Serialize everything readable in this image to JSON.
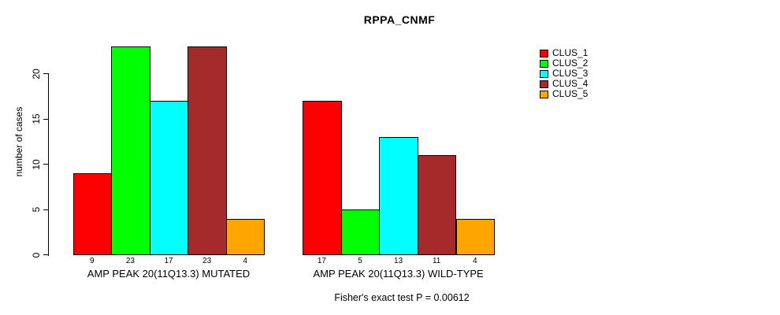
{
  "chart_data": {
    "type": "bar",
    "title": "RPPA_CNMF",
    "ylabel": "number of cases",
    "xlabel": "",
    "ylim": [
      0,
      20
    ],
    "yticks": [
      0,
      5,
      10,
      15,
      20
    ],
    "grid": false,
    "legend_position": "right",
    "bar_value_labels_shown": true,
    "categories": [
      "AMP PEAK 20(11Q13.3) MUTATED",
      "AMP PEAK 20(11Q13.3) WILD-TYPE"
    ],
    "series": [
      {
        "name": "CLUS_1",
        "color": "#FF0000",
        "values": [
          9,
          17
        ]
      },
      {
        "name": "CLUS_2",
        "color": "#00FF00",
        "values": [
          23,
          5
        ]
      },
      {
        "name": "CLUS_3",
        "color": "#00FFFF",
        "values": [
          17,
          13
        ]
      },
      {
        "name": "CLUS_4",
        "color": "#A52A2A",
        "values": [
          23,
          11
        ]
      },
      {
        "name": "CLUS_5",
        "color": "#FFA500",
        "values": [
          4,
          4
        ]
      }
    ],
    "annotation": "Fisher's exact test P = 0.00612"
  },
  "colors": {
    "background": "#ffffff",
    "axis": "#000000",
    "text": "#000000"
  }
}
